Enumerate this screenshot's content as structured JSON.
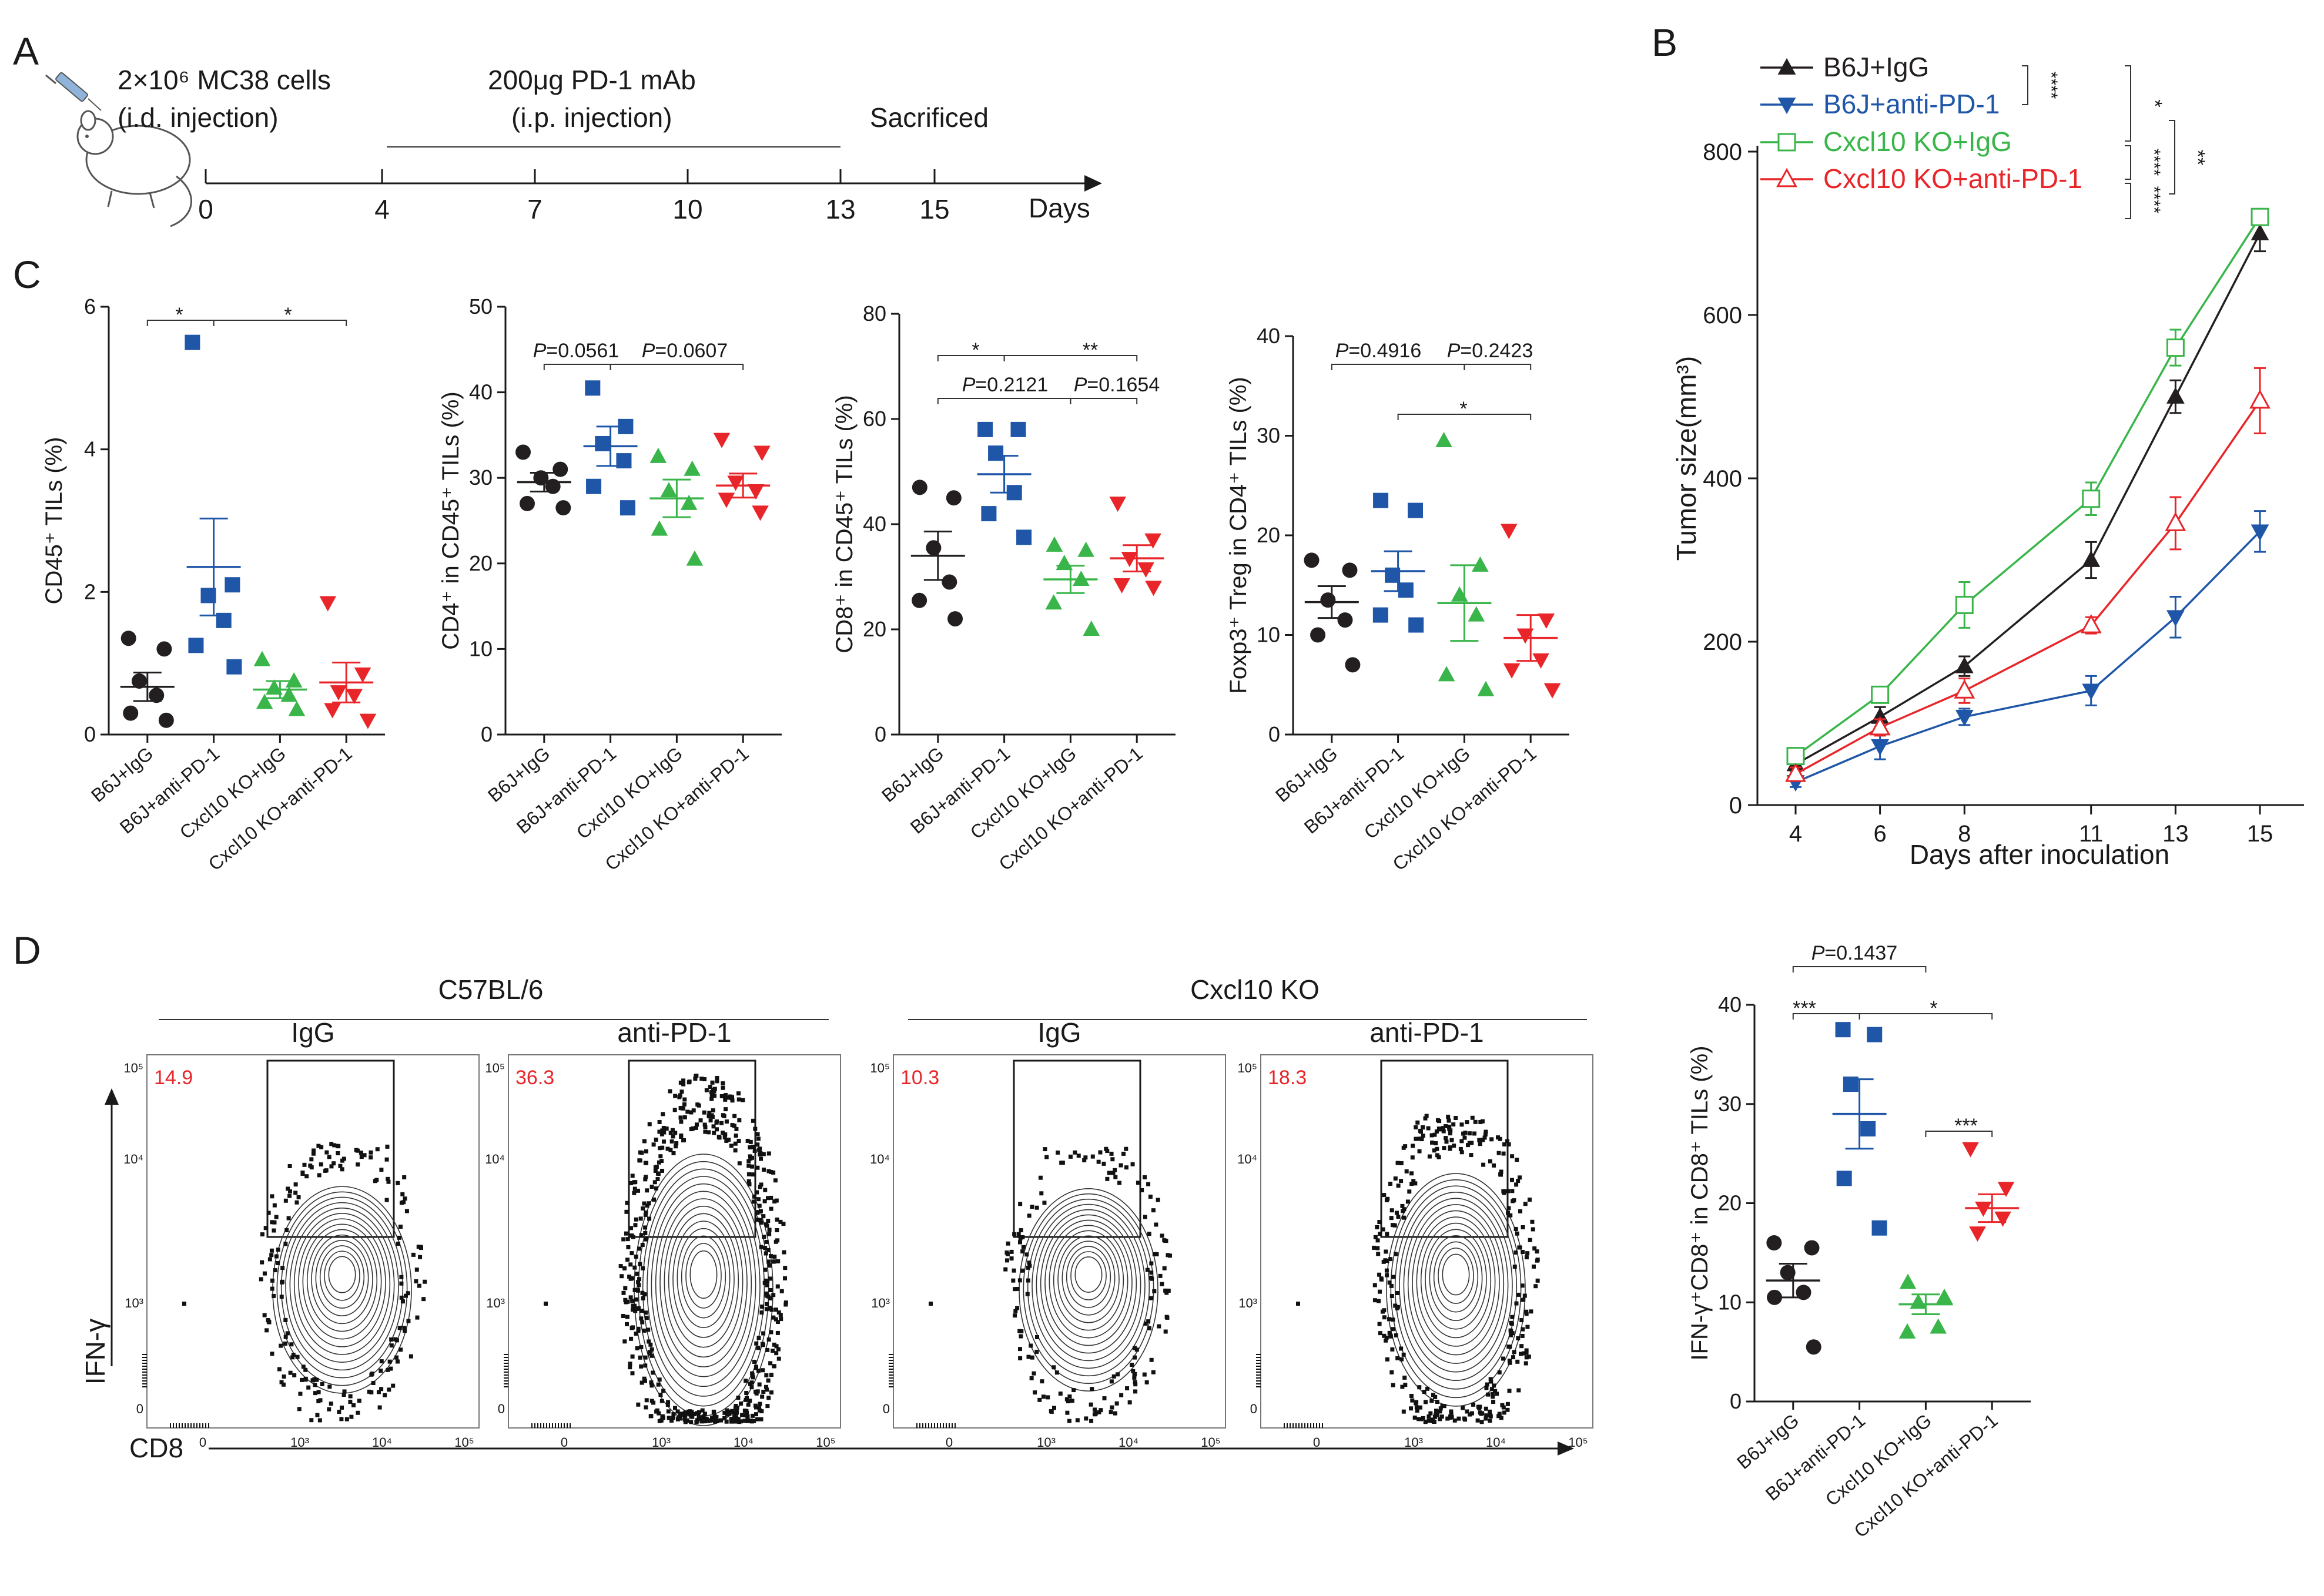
{
  "panel_labels": {
    "a": "A",
    "b": "B",
    "c": "C",
    "d": "D"
  },
  "colors": {
    "b6j_igg": "#231f20",
    "b6j_pd1": "#1f56a8",
    "ko_igg": "#39b54a",
    "ko_pd1": "#e8262a",
    "gate_text": "#e8262a"
  },
  "timeline": {
    "cells": "2×10⁶ MC38 cells",
    "cells_route": "(i.d. injection)",
    "mab": "200μg PD-1 mAb",
    "mab_route": "(i.p. injection)",
    "sacrificed": "Sacrificed",
    "days_label": "Days",
    "ticks": [
      "0",
      "4",
      "7",
      "10",
      "13",
      "15"
    ],
    "mouse_icon": "mouse-with-syringe-icon"
  },
  "groups": [
    "B6J+IgG",
    "B6J+anti-PD-1",
    "Cxcl10 KO+IgG",
    "Cxcl10 KO+anti-PD-1"
  ],
  "chart_data": [
    {
      "id": "B",
      "type": "line",
      "xlabel": "Days after inoculation",
      "ylabel": "Tumor size(mm³)",
      "x": [
        4,
        6,
        8,
        11,
        13,
        15
      ],
      "x_ticks": [
        "4",
        "6",
        "8",
        "11",
        "13",
        "15"
      ],
      "ylim": [
        0,
        800
      ],
      "y_ticks": [
        "0",
        "200",
        "400",
        "600",
        "800"
      ],
      "series": [
        {
          "name": "B6J+IgG",
          "marker": "triangle-up-filled",
          "values": [
            50,
            108,
            170,
            300,
            500,
            700
          ],
          "err": [
            8,
            12,
            12,
            22,
            20,
            22
          ]
        },
        {
          "name": "B6J+anti-PD-1",
          "marker": "triangle-down-filled",
          "values": [
            28,
            72,
            108,
            140,
            230,
            335
          ],
          "err": [
            6,
            16,
            10,
            18,
            25,
            25
          ]
        },
        {
          "name": "Cxcl10 KO+IgG",
          "marker": "square-open",
          "values": [
            60,
            135,
            245,
            375,
            560,
            720
          ],
          "err": [
            8,
            8,
            28,
            20,
            22,
            8
          ]
        },
        {
          "name": "Cxcl10 KO+anti-PD-1",
          "marker": "triangle-up-open",
          "values": [
            38,
            95,
            140,
            220,
            345,
            495
          ],
          "err": [
            8,
            10,
            15,
            10,
            32,
            40
          ]
        }
      ],
      "significance": [
        "****",
        "*",
        "****",
        "****",
        "**"
      ]
    },
    {
      "id": "C1",
      "type": "scatter",
      "ylabel": "CD45⁺ TILs (%)",
      "ylim": [
        0,
        6
      ],
      "y_ticks": [
        "0",
        "2",
        "4",
        "6"
      ],
      "categories": [
        "B6J+IgG",
        "B6J+anti-PD-1",
        "Cxcl10 KO+IgG",
        "Cxcl10 KO+anti-PD-1"
      ],
      "points": [
        [
          1.35,
          1.2,
          0.75,
          0.55,
          0.3,
          0.2
        ],
        [
          5.5,
          2.1,
          1.95,
          1.6,
          1.25,
          0.95
        ],
        [
          1.05,
          0.75,
          0.65,
          0.55,
          0.45,
          0.35
        ],
        [
          1.85,
          0.85,
          0.6,
          0.55,
          0.35,
          0.2
        ]
      ],
      "means": [
        0.67,
        2.35,
        0.63,
        0.73
      ],
      "sems": [
        0.2,
        0.68,
        0.12,
        0.28
      ],
      "annotations": [
        {
          "text": "*",
          "from": 0,
          "to": 1
        },
        {
          "text": "*",
          "from": 1,
          "to": 3
        }
      ]
    },
    {
      "id": "C2",
      "type": "scatter",
      "ylabel": "CD4⁺ in CD45⁺ TILs (%)",
      "ylim": [
        0,
        50
      ],
      "y_ticks": [
        "0",
        "10",
        "20",
        "30",
        "40",
        "50"
      ],
      "categories": [
        "B6J+IgG",
        "B6J+anti-PD-1",
        "Cxcl10 KO+IgG",
        "Cxcl10 KO+anti-PD-1"
      ],
      "points": [
        [
          33,
          31,
          30,
          29,
          27,
          26.5
        ],
        [
          40.5,
          36,
          34,
          32,
          29,
          26.5
        ],
        [
          32.5,
          31,
          28.5,
          27,
          24,
          20.5
        ],
        [
          34.5,
          33,
          29.5,
          28.5,
          27.5,
          26
        ]
      ],
      "means": [
        29.5,
        33.7,
        27.6,
        29.1
      ],
      "sems": [
        1.1,
        2.3,
        2.2,
        1.4
      ],
      "annotations": [
        {
          "text": "P=0.0561",
          "from": 0,
          "to": 1
        },
        {
          "text": "P=0.0607",
          "from": 1,
          "to": 3
        }
      ]
    },
    {
      "id": "C3",
      "type": "scatter",
      "ylabel": "CD8⁺ in CD45⁺ TILs (%)",
      "ylim": [
        0,
        80
      ],
      "y_ticks": [
        "0",
        "20",
        "40",
        "60",
        "80"
      ],
      "categories": [
        "B6J+IgG",
        "B6J+anti-PD-1",
        "Cxcl10 KO+IgG",
        "Cxcl10 KO+anti-PD-1"
      ],
      "points": [
        [
          47,
          45,
          35.5,
          29,
          25.5,
          22
        ],
        [
          58,
          58,
          53.5,
          46,
          42,
          37.5
        ],
        [
          36,
          35,
          32.5,
          29.5,
          25,
          20
        ],
        [
          44,
          37,
          33.5,
          31.5,
          28.5,
          28
        ]
      ],
      "means": [
        34,
        49.5,
        29.5,
        33.5
      ],
      "sems": [
        4.6,
        3.5,
        2.6,
        2.5
      ],
      "annotations": [
        {
          "text": "*",
          "from": 0,
          "to": 1
        },
        {
          "text": "**",
          "from": 1,
          "to": 3
        },
        {
          "text": "P=0.2121",
          "from": 0,
          "to": 2
        },
        {
          "text": "P=0.1654",
          "from": 2,
          "to": 3
        }
      ]
    },
    {
      "id": "C4",
      "type": "scatter",
      "ylabel": "Foxp3⁺ Treg in CD4⁺ TILs (%)",
      "ylim": [
        0,
        40
      ],
      "y_ticks": [
        "0",
        "10",
        "20",
        "30",
        "40"
      ],
      "categories": [
        "B6J+IgG",
        "B6J+anti-PD-1",
        "Cxcl10 KO+IgG",
        "Cxcl10 KO+anti-PD-1"
      ],
      "points": [
        [
          17.5,
          16.5,
          13.5,
          11.5,
          10,
          7
        ],
        [
          23.5,
          22.5,
          16,
          14.5,
          12,
          11
        ],
        [
          29.5,
          17,
          14,
          12,
          6,
          4.5
        ],
        [
          20.5,
          11.5,
          10,
          7.5,
          6.5,
          4.5
        ]
      ],
      "means": [
        13.3,
        16.4,
        13.2,
        9.7
      ],
      "sems": [
        1.6,
        2.0,
        3.8,
        2.3
      ],
      "annotations": [
        {
          "text": "P=0.4916",
          "from": 0,
          "to": 2
        },
        {
          "text": "P=0.2423",
          "from": 2,
          "to": 3
        },
        {
          "text": "*",
          "from": 1,
          "to": 3
        }
      ]
    },
    {
      "id": "D",
      "type": "scatter",
      "ylabel": "IFN-γ⁺CD8⁺ in CD8⁺ TILs (%)",
      "ylim": [
        0,
        40
      ],
      "y_ticks": [
        "0",
        "10",
        "20",
        "30",
        "40"
      ],
      "categories": [
        "B6J+IgG",
        "B6J+anti-PD-1",
        "Cxcl10 KO+IgG",
        "Cxcl10 KO+anti-PD-1"
      ],
      "points": [
        [
          16,
          15.5,
          13,
          11,
          10.5,
          5.5
        ],
        [
          37.5,
          37,
          32,
          27.5,
          22.5,
          17.5
        ],
        [
          12,
          10.5,
          10,
          7.5,
          7
        ],
        [
          25.5,
          21.5,
          19.5,
          18.5,
          17
        ]
      ],
      "means": [
        12.2,
        29,
        9.8,
        19.5
      ],
      "sems": [
        1.7,
        3.5,
        1.0,
        1.4
      ],
      "annotations": [
        {
          "text": "P=0.1437",
          "from": 0,
          "to": 2
        },
        {
          "text": "***",
          "from": 0,
          "to": 1
        },
        {
          "text": "*",
          "from": 1,
          "to": 3
        },
        {
          "text": "***",
          "from": 2,
          "to": 3
        }
      ]
    }
  ],
  "flow": {
    "strain_left": "C57BL/6",
    "strain_right": "Cxcl10 KO",
    "y_axis": "IFN-γ",
    "x_axis": "CD8",
    "tick_labels": [
      "0",
      "10³",
      "10⁴",
      "10⁵"
    ],
    "panels": [
      {
        "title": "IgG",
        "percent": "14.9",
        "density": 0.25
      },
      {
        "title": "anti-PD-1",
        "percent": "36.3",
        "density": 1.0
      },
      {
        "title": "IgG",
        "percent": "10.3",
        "density": 0.2
      },
      {
        "title": "anti-PD-1",
        "percent": "18.3",
        "density": 0.55
      }
    ]
  }
}
